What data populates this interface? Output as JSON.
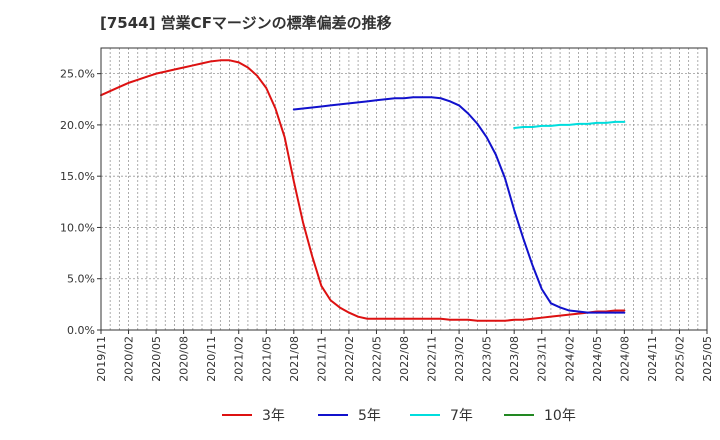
{
  "chart_data": {
    "type": "line",
    "title": "[7544]  営業CFマージンの標準偏差の推移",
    "xlabel": "",
    "ylabel": "",
    "ylim": [
      0,
      0.275
    ],
    "x_ticks": [
      "2019/11",
      "2020/02",
      "2020/05",
      "2020/08",
      "2020/11",
      "2021/02",
      "2021/05",
      "2021/08",
      "2021/11",
      "2022/02",
      "2022/05",
      "2022/08",
      "2022/11",
      "2023/02",
      "2023/05",
      "2023/08",
      "2023/11",
      "2024/02",
      "2024/05",
      "2024/08",
      "2024/11",
      "2025/02",
      "2025/05"
    ],
    "y_ticks": [
      {
        "value": 0.0,
        "label": "0.0%"
      },
      {
        "value": 0.05,
        "label": "5.0%"
      },
      {
        "value": 0.1,
        "label": "10.0%"
      },
      {
        "value": 0.15,
        "label": "15.0%"
      },
      {
        "value": 0.2,
        "label": "20.0%"
      },
      {
        "value": 0.25,
        "label": "25.0%"
      }
    ],
    "grid": true,
    "legend_position": "bottom",
    "series": [
      {
        "name": "3年",
        "color": "#dd1111",
        "points": [
          [
            "2019/11",
            0.229
          ],
          [
            "2019/12",
            0.233
          ],
          [
            "2020/01",
            0.237
          ],
          [
            "2020/02",
            0.241
          ],
          [
            "2020/03",
            0.244
          ],
          [
            "2020/04",
            0.247
          ],
          [
            "2020/05",
            0.25
          ],
          [
            "2020/06",
            0.252
          ],
          [
            "2020/07",
            0.254
          ],
          [
            "2020/08",
            0.256
          ],
          [
            "2020/09",
            0.258
          ],
          [
            "2020/10",
            0.26
          ],
          [
            "2020/11",
            0.262
          ],
          [
            "2020/12",
            0.263
          ],
          [
            "2021/01",
            0.263
          ],
          [
            "2021/02",
            0.261
          ],
          [
            "2021/03",
            0.256
          ],
          [
            "2021/04",
            0.248
          ],
          [
            "2021/05",
            0.236
          ],
          [
            "2021/06",
            0.216
          ],
          [
            "2021/07",
            0.188
          ],
          [
            "2021/08",
            0.145
          ],
          [
            "2021/09",
            0.105
          ],
          [
            "2021/10",
            0.072
          ],
          [
            "2021/11",
            0.043
          ],
          [
            "2021/12",
            0.029
          ],
          [
            "2022/01",
            0.022
          ],
          [
            "2022/02",
            0.017
          ],
          [
            "2022/03",
            0.013
          ],
          [
            "2022/04",
            0.011
          ],
          [
            "2022/05",
            0.011
          ],
          [
            "2022/06",
            0.011
          ],
          [
            "2022/07",
            0.011
          ],
          [
            "2022/08",
            0.011
          ],
          [
            "2022/09",
            0.011
          ],
          [
            "2022/10",
            0.011
          ],
          [
            "2022/11",
            0.011
          ],
          [
            "2022/12",
            0.011
          ],
          [
            "2023/01",
            0.01
          ],
          [
            "2023/02",
            0.01
          ],
          [
            "2023/03",
            0.01
          ],
          [
            "2023/04",
            0.009
          ],
          [
            "2023/05",
            0.009
          ],
          [
            "2023/06",
            0.009
          ],
          [
            "2023/07",
            0.009
          ],
          [
            "2023/08",
            0.01
          ],
          [
            "2023/09",
            0.01
          ],
          [
            "2023/10",
            0.011
          ],
          [
            "2023/11",
            0.012
          ],
          [
            "2023/12",
            0.013
          ],
          [
            "2024/01",
            0.014
          ],
          [
            "2024/02",
            0.015
          ],
          [
            "2024/03",
            0.016
          ],
          [
            "2024/04",
            0.017
          ],
          [
            "2024/05",
            0.018
          ],
          [
            "2024/06",
            0.018
          ],
          [
            "2024/07",
            0.019
          ],
          [
            "2024/08",
            0.019
          ]
        ]
      },
      {
        "name": "5年",
        "color": "#1111cc",
        "points": [
          [
            "2021/08",
            0.215
          ],
          [
            "2021/09",
            0.216
          ],
          [
            "2021/10",
            0.217
          ],
          [
            "2021/11",
            0.218
          ],
          [
            "2021/12",
            0.219
          ],
          [
            "2022/01",
            0.22
          ],
          [
            "2022/02",
            0.221
          ],
          [
            "2022/03",
            0.222
          ],
          [
            "2022/04",
            0.223
          ],
          [
            "2022/05",
            0.224
          ],
          [
            "2022/06",
            0.225
          ],
          [
            "2022/07",
            0.226
          ],
          [
            "2022/08",
            0.226
          ],
          [
            "2022/09",
            0.227
          ],
          [
            "2022/10",
            0.227
          ],
          [
            "2022/11",
            0.227
          ],
          [
            "2022/12",
            0.226
          ],
          [
            "2023/01",
            0.223
          ],
          [
            "2023/02",
            0.219
          ],
          [
            "2023/03",
            0.211
          ],
          [
            "2023/04",
            0.201
          ],
          [
            "2023/05",
            0.188
          ],
          [
            "2023/06",
            0.171
          ],
          [
            "2023/07",
            0.148
          ],
          [
            "2023/08",
            0.117
          ],
          [
            "2023/09",
            0.089
          ],
          [
            "2023/10",
            0.063
          ],
          [
            "2023/11",
            0.04
          ],
          [
            "2023/12",
            0.026
          ],
          [
            "2024/01",
            0.022
          ],
          [
            "2024/02",
            0.019
          ],
          [
            "2024/03",
            0.018
          ],
          [
            "2024/04",
            0.017
          ],
          [
            "2024/05",
            0.017
          ],
          [
            "2024/06",
            0.017
          ],
          [
            "2024/07",
            0.017
          ],
          [
            "2024/08",
            0.017
          ]
        ]
      },
      {
        "name": "7年",
        "color": "#00dddd",
        "points": [
          [
            "2023/08",
            0.197
          ],
          [
            "2023/09",
            0.198
          ],
          [
            "2023/10",
            0.198
          ],
          [
            "2023/11",
            0.199
          ],
          [
            "2023/12",
            0.199
          ],
          [
            "2024/01",
            0.2
          ],
          [
            "2024/02",
            0.2
          ],
          [
            "2024/03",
            0.201
          ],
          [
            "2024/04",
            0.201
          ],
          [
            "2024/05",
            0.202
          ],
          [
            "2024/06",
            0.202
          ],
          [
            "2024/07",
            0.203
          ],
          [
            "2024/08",
            0.203
          ]
        ]
      },
      {
        "name": "10年",
        "color": "#228822",
        "points": []
      }
    ]
  }
}
